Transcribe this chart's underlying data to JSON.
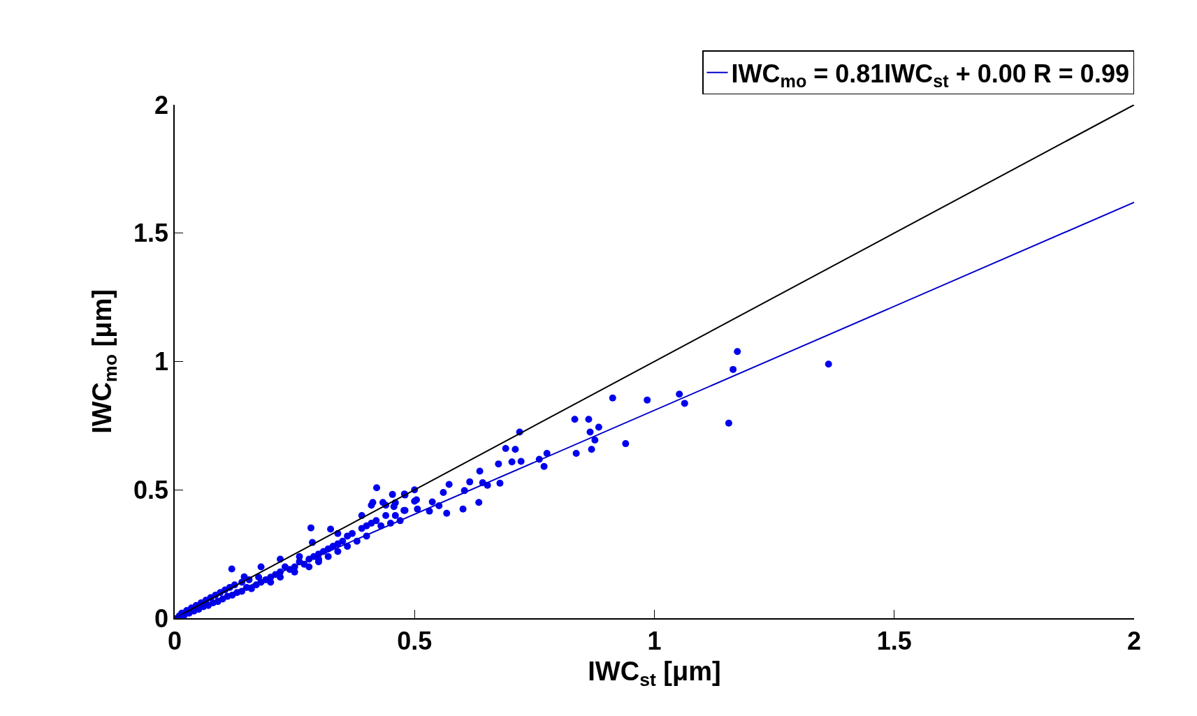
{
  "chart_data": {
    "type": "scatter",
    "xlabel": "IWC$_{st}$ [μm]",
    "ylabel": "IWC$_{mo}$ [μm]",
    "xlim": [
      0,
      2
    ],
    "ylim": [
      0,
      2
    ],
    "xticks": [
      0,
      0.5,
      1,
      1.5,
      2
    ],
    "yticks": [
      0,
      0.5,
      1,
      1.5,
      2
    ],
    "grid": false,
    "legend": "top right",
    "series": [
      {
        "marker": "circle",
        "color": "#0000ee",
        "x": [
          0.005,
          0.01,
          0.015,
          0.02,
          0.025,
          0.03,
          0.035,
          0.04,
          0.045,
          0.05,
          0.055,
          0.06,
          0.065,
          0.07,
          0.075,
          0.08,
          0.085,
          0.09,
          0.095,
          0.1,
          0.105,
          0.11,
          0.115,
          0.12,
          0.125,
          0.13,
          0.14,
          0.14,
          0.15,
          0.155,
          0.16,
          0.17,
          0.175,
          0.18,
          0.19,
          0.2,
          0.2,
          0.21,
          0.22,
          0.22,
          0.23,
          0.24,
          0.25,
          0.25,
          0.26,
          0.27,
          0.28,
          0.28,
          0.29,
          0.3,
          0.3,
          0.31,
          0.32,
          0.32,
          0.33,
          0.34,
          0.34,
          0.35,
          0.36,
          0.36,
          0.37,
          0.38,
          0.39,
          0.4,
          0.4,
          0.41,
          0.42,
          0.43,
          0.44,
          0.45,
          0.46,
          0.47,
          0.48,
          0.44,
          0.41,
          0.46,
          0.48,
          0.5,
          0.39,
          0.34,
          0.18,
          0.22,
          0.3,
          0.26,
          0.284,
          0.325,
          0.287,
          0.119,
          0.145,
          0.421,
          0.479,
          0.454,
          0.434,
          0.413,
          0.457,
          0.506,
          0.5,
          0.478,
          0.504,
          0.531,
          0.537,
          0.567,
          0.551,
          0.56,
          0.572,
          0.601,
          0.634,
          0.652,
          0.642,
          0.604,
          0.615,
          0.636,
          0.678,
          0.675,
          0.69,
          0.703,
          0.722,
          0.71,
          0.719,
          0.76,
          0.776,
          0.77,
          0.866,
          0.876,
          0.869,
          0.837,
          0.884,
          0.863,
          0.834,
          0.94,
          0.913,
          0.985,
          1.155,
          1.052,
          1.063,
          1.164,
          1.173,
          1.363
        ],
        "values": [
          0,
          0.01,
          0.02,
          0.012,
          0.03,
          0.02,
          0.04,
          0.028,
          0.05,
          0.035,
          0.06,
          0.045,
          0.07,
          0.05,
          0.08,
          0.06,
          0.09,
          0.065,
          0.1,
          0.075,
          0.11,
          0.085,
          0.12,
          0.09,
          0.13,
          0.1,
          0.14,
          0.105,
          0.12,
          0.15,
          0.115,
          0.13,
          0.16,
          0.14,
          0.15,
          0.16,
          0.14,
          0.17,
          0.18,
          0.16,
          0.2,
          0.19,
          0.2,
          0.18,
          0.22,
          0.21,
          0.23,
          0.2,
          0.24,
          0.25,
          0.22,
          0.26,
          0.27,
          0.24,
          0.28,
          0.29,
          0.26,
          0.3,
          0.32,
          0.28,
          0.33,
          0.3,
          0.35,
          0.36,
          0.32,
          0.37,
          0.38,
          0.36,
          0.4,
          0.37,
          0.4,
          0.38,
          0.42,
          0.44,
          0.44,
          0.45,
          0.48,
          0.5,
          0.4,
          0.33,
          0.2,
          0.23,
          0.23,
          0.24,
          0.352,
          0.347,
          0.295,
          0.192,
          0.161,
          0.508,
          0.484,
          0.482,
          0.451,
          0.451,
          0.435,
          0.425,
          0.456,
          0.42,
          0.461,
          0.417,
          0.453,
          0.409,
          0.438,
          0.49,
          0.521,
          0.425,
          0.451,
          0.518,
          0.528,
          0.497,
          0.531,
          0.573,
          0.526,
          0.601,
          0.661,
          0.609,
          0.611,
          0.658,
          0.725,
          0.619,
          0.642,
          0.591,
          0.725,
          0.694,
          0.658,
          0.642,
          0.744,
          0.775,
          0.775,
          0.68,
          0.858,
          0.85,
          0.76,
          0.873,
          0.837,
          0.969,
          1.039,
          0.99
        ]
      },
      {
        "type": "line",
        "marker": "none",
        "color": "#000000",
        "x": [
          0,
          2
        ],
        "values": [
          0,
          2
        ]
      },
      {
        "type": "line",
        "marker": "none",
        "name": "IWC$_{mo}$ = 0.81IWC$_{st}$ + 0.00 R = 0.99",
        "color": "#0000cc",
        "x": [
          0,
          2
        ],
        "values": [
          0,
          1.62
        ]
      }
    ]
  }
}
